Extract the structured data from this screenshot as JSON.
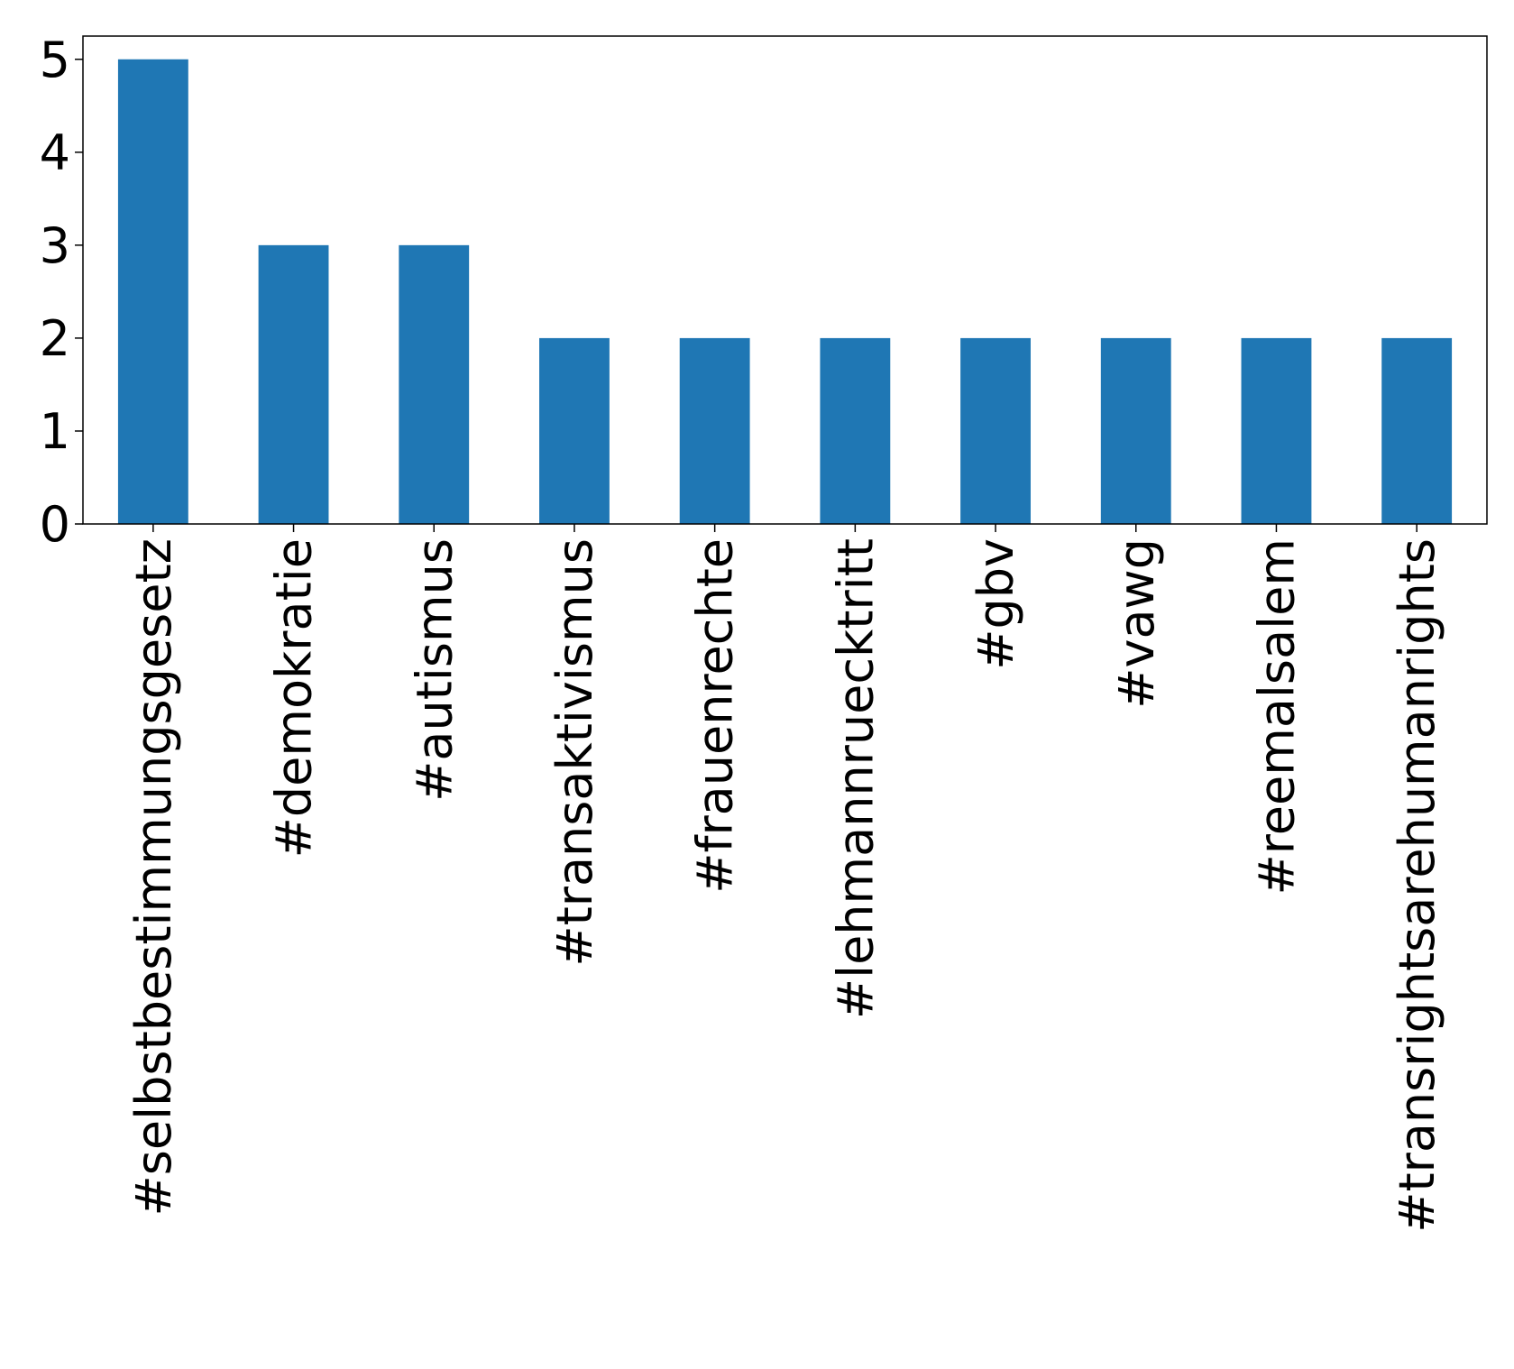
{
  "chart_data": {
    "type": "bar",
    "categories": [
      "#selbstbestimmungsgesetz",
      "#demokratie",
      "#autismus",
      "#transaktivismus",
      "#frauenrechte",
      "#lehmannruecktritt",
      "#gbv",
      "#vawg",
      "#reemalsalem",
      "#transrightsarehumanrights"
    ],
    "values": [
      5,
      3,
      3,
      2,
      2,
      2,
      2,
      2,
      2,
      2
    ],
    "color": "#1f77b4",
    "ylim": [
      0,
      5.25
    ],
    "yticks": [
      0,
      1,
      2,
      3,
      4,
      5
    ],
    "grid": false
  }
}
